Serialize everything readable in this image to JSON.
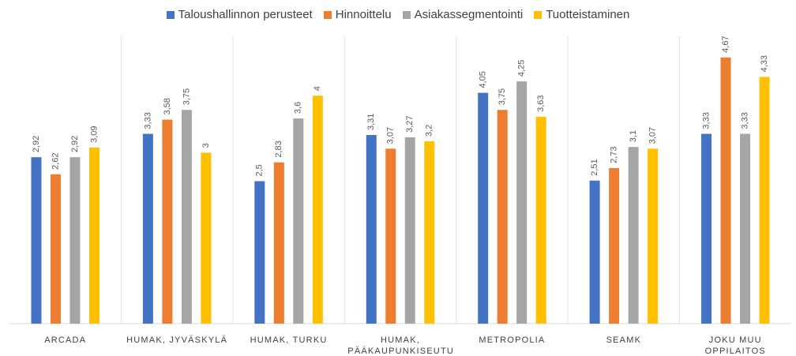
{
  "chart_data": {
    "type": "bar",
    "categories": [
      "ARCADA",
      "HUMAK, JYVÄSKYLÄ",
      "HUMAK, TURKU",
      "HUMAK, PÄÄKAUPUNKISEUTU",
      "METROPOLIA",
      "SEAMK",
      "JOKU MUU OPPILAITOS"
    ],
    "series": [
      {
        "name": "Taloushallinnon perusteet",
        "color": "#4472c4",
        "values": [
          2.92,
          3.33,
          2.5,
          3.31,
          4.05,
          2.51,
          3.33
        ],
        "value_labels": [
          "2,92",
          "3,33",
          "2,5",
          "3,31",
          "4,05",
          "2,51",
          "3,33"
        ]
      },
      {
        "name": "Hinnoittelu",
        "color": "#ed7d31",
        "values": [
          2.62,
          3.58,
          2.83,
          3.07,
          3.75,
          2.73,
          4.67
        ],
        "value_labels": [
          "2,62",
          "3,58",
          "2,83",
          "3,07",
          "3,75",
          "2,73",
          "4,67"
        ]
      },
      {
        "name": "Asiakassegmentointi",
        "color": "#a5a5a5",
        "values": [
          2.92,
          3.75,
          3.6,
          3.27,
          4.25,
          3.1,
          3.33
        ],
        "value_labels": [
          "2,92",
          "3,75",
          "3,6",
          "3,27",
          "4,25",
          "3,1",
          "3,33"
        ]
      },
      {
        "name": "Tuotteistaminen",
        "color": "#ffc000",
        "values": [
          3.09,
          3,
          4,
          3.2,
          3.63,
          3.07,
          4.33
        ],
        "value_labels": [
          "3,09",
          "3",
          "4",
          "3,2",
          "3,63",
          "3,07",
          "4,33"
        ]
      }
    ],
    "ylim": [
      0,
      5
    ],
    "legend": "top"
  }
}
